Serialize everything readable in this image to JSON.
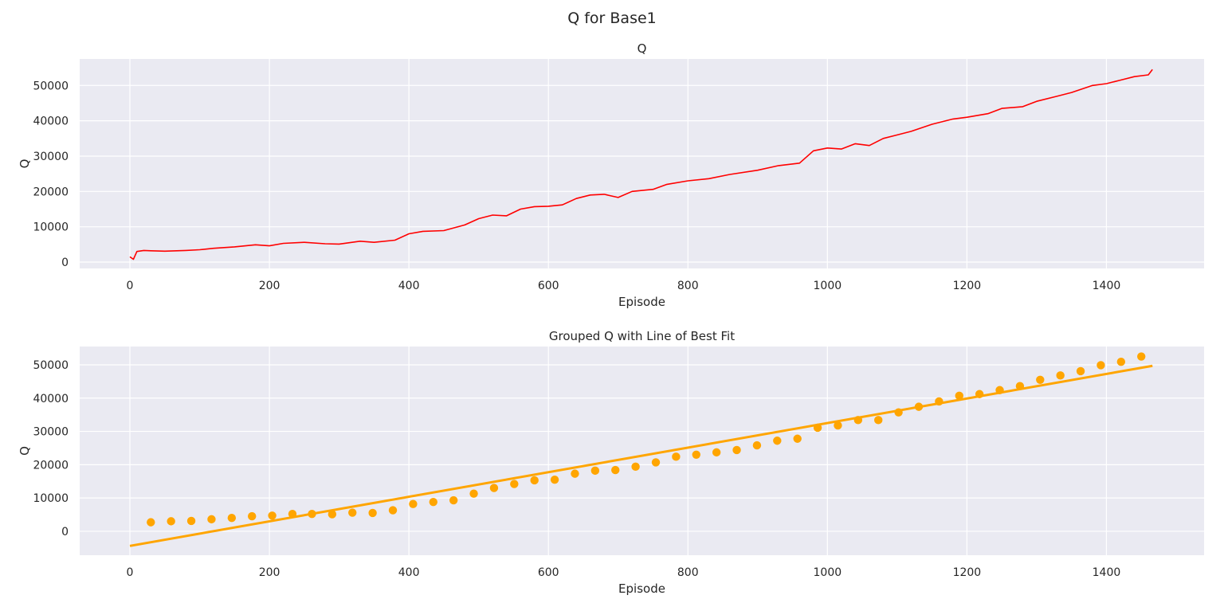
{
  "suptitle": "Q for Base1",
  "chart_data": [
    {
      "type": "line",
      "title": "Q",
      "xlabel": "Episode",
      "ylabel": "Q",
      "xlim": [
        -72,
        1540
      ],
      "ylim": [
        -1800,
        57500
      ],
      "xticks": [
        0,
        200,
        400,
        600,
        800,
        1000,
        1200,
        1400
      ],
      "yticks": [
        0,
        10000,
        20000,
        30000,
        40000,
        50000
      ],
      "grid": true,
      "color": "#ff0000",
      "series": [
        {
          "x": [
            0,
            5,
            10,
            20,
            30,
            50,
            80,
            100,
            120,
            150,
            180,
            200,
            220,
            250,
            280,
            300,
            330,
            350,
            380,
            400,
            420,
            450,
            480,
            500,
            520,
            540,
            560,
            580,
            600,
            620,
            640,
            660,
            680,
            700,
            720,
            750,
            770,
            800,
            830,
            860,
            900,
            930,
            960,
            980,
            1000,
            1020,
            1040,
            1060,
            1080,
            1100,
            1120,
            1150,
            1180,
            1200,
            1230,
            1250,
            1280,
            1300,
            1330,
            1350,
            1380,
            1400,
            1420,
            1440,
            1460,
            1466
          ],
          "values": [
            1500,
            800,
            3000,
            3300,
            3200,
            3100,
            3300,
            3500,
            3900,
            4300,
            4900,
            4600,
            5300,
            5600,
            5200,
            5100,
            5900,
            5600,
            6200,
            8000,
            8700,
            8900,
            10500,
            12300,
            13300,
            13100,
            15000,
            15700,
            15800,
            16200,
            18000,
            19000,
            19200,
            18300,
            20000,
            20600,
            22000,
            23000,
            23600,
            24800,
            26000,
            27300,
            28000,
            31500,
            32300,
            32000,
            33500,
            33000,
            35000,
            36000,
            37000,
            39000,
            40500,
            41000,
            42000,
            43500,
            44000,
            45500,
            47000,
            48000,
            50000,
            50500,
            51500,
            52500,
            53000,
            54500
          ]
        }
      ]
    },
    {
      "type": "scatter",
      "title": "Grouped Q with Line of Best Fit",
      "xlabel": "Episode",
      "ylabel": "Q",
      "xlim": [
        -72,
        1540
      ],
      "ylim": [
        -7200,
        55500
      ],
      "xticks": [
        0,
        200,
        400,
        600,
        800,
        1000,
        1200,
        1400
      ],
      "yticks": [
        0,
        10000,
        20000,
        30000,
        40000,
        50000
      ],
      "grid": true,
      "color": "#ffa500",
      "series": [
        {
          "x": [
            30,
            59,
            88,
            117,
            146,
            175,
            204,
            233,
            261,
            290,
            319,
            348,
            377,
            406,
            435,
            464,
            493,
            522,
            551,
            580,
            609,
            638,
            667,
            696,
            725,
            754,
            783,
            812,
            841,
            870,
            899,
            928,
            957,
            986,
            1015,
            1044,
            1073,
            1102,
            1131,
            1160,
            1189,
            1218,
            1247,
            1276,
            1305,
            1334,
            1363,
            1392,
            1421,
            1450
          ],
          "values": [
            2700,
            3000,
            3100,
            3600,
            4000,
            4500,
            4700,
            5200,
            5200,
            5100,
            5600,
            5500,
            6300,
            8200,
            8800,
            9300,
            11300,
            13000,
            14200,
            15300,
            15500,
            17300,
            18200,
            18400,
            19400,
            20700,
            22400,
            23000,
            23700,
            24400,
            25800,
            27200,
            27800,
            31100,
            31800,
            33400,
            33400,
            35700,
            37400,
            39000,
            40700,
            41200,
            42400,
            43600,
            45500,
            46800,
            48100,
            49900,
            50900,
            52500
          ]
        }
      ],
      "fit_line": {
        "x": [
          0,
          1466
        ],
        "values": [
          -4400,
          49700
        ]
      }
    }
  ]
}
